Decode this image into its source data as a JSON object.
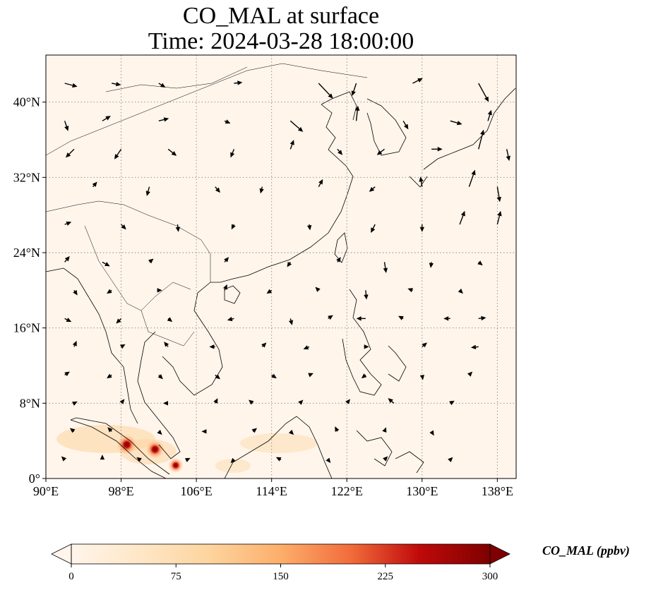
{
  "title": {
    "line1": "CO_MAL at surface",
    "line2": "Time: 2024-03-28 18:00:00"
  },
  "map": {
    "lon_range": [
      90,
      140
    ],
    "lat_range": [
      0,
      45
    ],
    "lon_ticks": [
      {
        "value": 90,
        "label": "90°E"
      },
      {
        "value": 98,
        "label": "98°E"
      },
      {
        "value": 106,
        "label": "106°E"
      },
      {
        "value": 114,
        "label": "114°E"
      },
      {
        "value": 122,
        "label": "122°E"
      },
      {
        "value": 130,
        "label": "130°E"
      },
      {
        "value": 138,
        "label": "138°E"
      }
    ],
    "lat_ticks": [
      {
        "value": 0,
        "label": "0°"
      },
      {
        "value": 8,
        "label": "8°N"
      },
      {
        "value": 16,
        "label": "16°N"
      },
      {
        "value": 24,
        "label": "24°N"
      },
      {
        "value": 32,
        "label": "32°N"
      },
      {
        "value": 40,
        "label": "40°N"
      }
    ],
    "gridlines": true,
    "background_color": "#fff5eb"
  },
  "colorbar": {
    "label": "CO_MAL (ppbv)",
    "min": 0,
    "max": 300,
    "ticks": [
      {
        "value": 0,
        "label": "0"
      },
      {
        "value": 75,
        "label": "75"
      },
      {
        "value": 150,
        "label": "150"
      },
      {
        "value": 225,
        "label": "225"
      },
      {
        "value": 300,
        "label": "300"
      }
    ],
    "colormap": "OrRd",
    "colors": [
      "#fff5eb",
      "#fdd49e",
      "#fdbb84",
      "#fc8d59",
      "#e34a33",
      "#b30000",
      "#7f0000"
    ]
  },
  "hotspots": [
    {
      "lon": 98.6,
      "lat": 3.6,
      "value": 260
    },
    {
      "lon": 101.6,
      "lat": 3.1,
      "value": 230
    },
    {
      "lon": 103.8,
      "lat": 1.4,
      "value": 150
    }
  ],
  "wind_field": [
    [
      92,
      42,
      1.5,
      -0.4
    ],
    [
      97,
      42,
      1.1,
      -0.2
    ],
    [
      102,
      42,
      0.8,
      -0.5
    ],
    [
      110,
      42,
      1.0,
      0.1
    ],
    [
      119,
      42,
      1.7,
      -1.8
    ],
    [
      123,
      42,
      -0.5,
      -1.5
    ],
    [
      129,
      42,
      1.2,
      0.6
    ],
    [
      136,
      42,
      1.2,
      -2.2
    ],
    [
      92,
      38,
      0.4,
      -1.2
    ],
    [
      96,
      38,
      1.0,
      0.6
    ],
    [
      102,
      38,
      1.2,
      0.3
    ],
    [
      109,
      38,
      0.7,
      -0.3
    ],
    [
      116,
      38,
      1.5,
      -1.3
    ],
    [
      123,
      38,
      0.2,
      1.8
    ],
    [
      128,
      38,
      0.6,
      -1.0
    ],
    [
      133,
      38,
      1.4,
      -0.4
    ],
    [
      137,
      38,
      0.4,
      1.3
    ],
    [
      93,
      35,
      -1.0,
      -1.0
    ],
    [
      98,
      35,
      -0.8,
      -1.2
    ],
    [
      103,
      35,
      1.0,
      -0.8
    ],
    [
      110,
      35,
      -0.4,
      -1.0
    ],
    [
      116,
      35,
      0.4,
      1.1
    ],
    [
      121,
      35,
      0.6,
      -0.7
    ],
    [
      126,
      35,
      -0.9,
      -0.7
    ],
    [
      131,
      35,
      1.3,
      0.0
    ],
    [
      136,
      35,
      0.6,
      2.3
    ],
    [
      139,
      35,
      0.3,
      -1.4
    ],
    [
      95,
      31,
      0.5,
      0.6
    ],
    [
      101,
      31,
      -0.3,
      -1.1
    ],
    [
      108,
      31,
      0.6,
      -0.7
    ],
    [
      113,
      31,
      -0.2,
      -0.8
    ],
    [
      119,
      31,
      0.5,
      0.9
    ],
    [
      125,
      31,
      -0.7,
      -0.6
    ],
    [
      130,
      31,
      -0.2,
      1.2
    ],
    [
      135,
      31,
      0.7,
      2.0
    ],
    [
      138,
      31,
      0.3,
      -1.8
    ],
    [
      92,
      27,
      0.8,
      0.3
    ],
    [
      98,
      27,
      0.6,
      -0.6
    ],
    [
      104,
      27,
      0.1,
      -0.9
    ],
    [
      110,
      27,
      -0.3,
      -0.6
    ],
    [
      118,
      27,
      0.1,
      -0.7
    ],
    [
      125,
      27,
      -0.5,
      -1.0
    ],
    [
      130,
      27,
      0.0,
      -0.9
    ],
    [
      134,
      27,
      0.6,
      1.6
    ],
    [
      138,
      27,
      0.4,
      1.6
    ],
    [
      92,
      23,
      0.6,
      0.7
    ],
    [
      96,
      23,
      0.9,
      -0.5
    ],
    [
      101,
      23,
      0.5,
      0.4
    ],
    [
      109,
      23,
      0.5,
      0.6
    ],
    [
      116,
      23,
      -0.4,
      -0.6
    ],
    [
      121,
      23,
      0.4,
      0.6
    ],
    [
      126,
      23,
      0.2,
      -1.3
    ],
    [
      131,
      23,
      -0.1,
      -0.7
    ],
    [
      136,
      23,
      0.5,
      -0.4
    ],
    [
      93,
      20,
      0.4,
      -0.6
    ],
    [
      97,
      20,
      -0.6,
      -0.4
    ],
    [
      102,
      20,
      0.4,
      0.0
    ],
    [
      109,
      20,
      0.3,
      0.7
    ],
    [
      114,
      20,
      -0.6,
      -0.4
    ],
    [
      119,
      20,
      -0.4,
      0.4
    ],
    [
      124,
      20,
      0.1,
      -1.1
    ],
    [
      129,
      20,
      -0.6,
      0.2
    ],
    [
      134,
      20,
      0.4,
      -0.4
    ],
    [
      92,
      17,
      0.8,
      -0.4
    ],
    [
      98,
      17,
      -0.6,
      -0.6
    ],
    [
      103,
      17,
      0.5,
      -0.4
    ],
    [
      110,
      17,
      -0.8,
      -0.2
    ],
    [
      116,
      17,
      0.2,
      -0.8
    ],
    [
      120,
      17,
      0.6,
      0.4
    ],
    [
      124,
      17,
      -1.1,
      0.0
    ],
    [
      128,
      17,
      -0.6,
      0.3
    ],
    [
      133,
      17,
      -0.8,
      0.0
    ],
    [
      136,
      17,
      0.9,
      0.1
    ],
    [
      93,
      14,
      0.3,
      0.7
    ],
    [
      98,
      14,
      0.5,
      0.3
    ],
    [
      103,
      14,
      -0.5,
      0.6
    ],
    [
      108,
      14,
      -0.7,
      0.0
    ],
    [
      113,
      14,
      0.5,
      0.5
    ],
    [
      118,
      14,
      -0.7,
      -0.3
    ],
    [
      124,
      14,
      0.4,
      0.0
    ],
    [
      130,
      14,
      0.6,
      0.5
    ],
    [
      136,
      14,
      -0.9,
      -0.1
    ],
    [
      92,
      11,
      0.6,
      0.4
    ],
    [
      97,
      11,
      -0.6,
      -0.4
    ],
    [
      102,
      11,
      0.5,
      -0.5
    ],
    [
      108,
      11,
      0.6,
      -0.5
    ],
    [
      114,
      11,
      0.6,
      -0.4
    ],
    [
      118,
      11,
      0.5,
      0.2
    ],
    [
      124,
      11,
      -0.5,
      -0.4
    ],
    [
      130,
      11,
      0.1,
      -0.6
    ],
    [
      135,
      11,
      0.4,
      0.4
    ],
    [
      93,
      8,
      0.4,
      0.2
    ],
    [
      98,
      8,
      0.4,
      0.5
    ],
    [
      103,
      8,
      -0.6,
      0.0
    ],
    [
      108,
      8,
      0.3,
      0.6
    ],
    [
      112,
      8,
      -0.5,
      0.4
    ],
    [
      117,
      8,
      0.4,
      0.4
    ],
    [
      122,
      8,
      0.4,
      0.5
    ],
    [
      127,
      8,
      -0.7,
      0.6
    ],
    [
      133,
      8,
      0.5,
      0.3
    ],
    [
      93,
      5,
      -0.5,
      0.4
    ],
    [
      97,
      5,
      -0.5,
      0.5
    ],
    [
      102,
      5,
      0.4,
      -0.4
    ],
    [
      107,
      5,
      -0.5,
      0.0
    ],
    [
      112,
      5,
      0.5,
      0.4
    ],
    [
      116,
      5,
      0.4,
      -0.4
    ],
    [
      121,
      5,
      -0.3,
      0.6
    ],
    [
      126,
      5,
      0.2,
      0.5
    ],
    [
      131,
      5,
      0.3,
      -0.5
    ],
    [
      92,
      2,
      -0.4,
      0.4
    ],
    [
      96,
      2,
      0.0,
      0.6
    ],
    [
      100,
      2,
      -0.4,
      0.3
    ],
    [
      105,
      2,
      0.4,
      0.2
    ],
    [
      110,
      2,
      -0.4,
      -0.4
    ],
    [
      115,
      2,
      -0.6,
      0.3
    ],
    [
      120,
      2,
      0.3,
      -0.4
    ],
    [
      126,
      2,
      0.4,
      0.4
    ],
    [
      133,
      2,
      0.3,
      0.3
    ]
  ]
}
